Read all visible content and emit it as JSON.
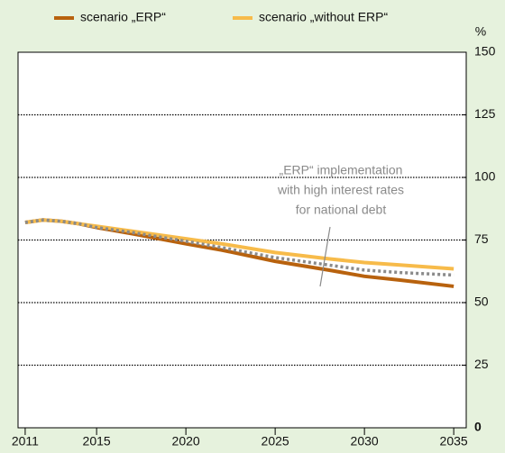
{
  "chart_data": {
    "type": "line",
    "y_unit": "%",
    "legend": "top",
    "grid": true,
    "x": [
      2011,
      2012,
      2013,
      2014,
      2015,
      2017,
      2020,
      2022,
      2025,
      2028,
      2030,
      2032,
      2035
    ],
    "series": [
      {
        "name": "scenario „ERP“",
        "color": "#b8620e",
        "values": [
          82,
          83,
          82.5,
          81.5,
          80,
          77.5,
          73.5,
          71,
          66.5,
          63,
          60.5,
          59,
          56.5
        ]
      },
      {
        "name": "scenario „without ERP“",
        "color": "#f7bb4a",
        "values": [
          82,
          83,
          82.5,
          81.5,
          80.5,
          78.5,
          75.5,
          73.5,
          70,
          67.5,
          66,
          65,
          63.5
        ]
      },
      {
        "color": "#8a8a8a",
        "dash": true,
        "values": [
          82,
          83,
          82.5,
          81.5,
          80,
          78,
          74.5,
          72,
          68,
          65,
          63,
          62,
          61
        ]
      }
    ],
    "annotation": [
      "„ERP“ implementation",
      "with high interest rates",
      "for national debt"
    ],
    "xlim": [
      2010.6,
      2035.7
    ],
    "xticks": [
      2011,
      2015,
      2020,
      2025,
      2030,
      2035
    ],
    "ylim": [
      0,
      150
    ],
    "yticks": [
      0,
      25,
      50,
      75,
      100,
      125,
      150
    ]
  }
}
